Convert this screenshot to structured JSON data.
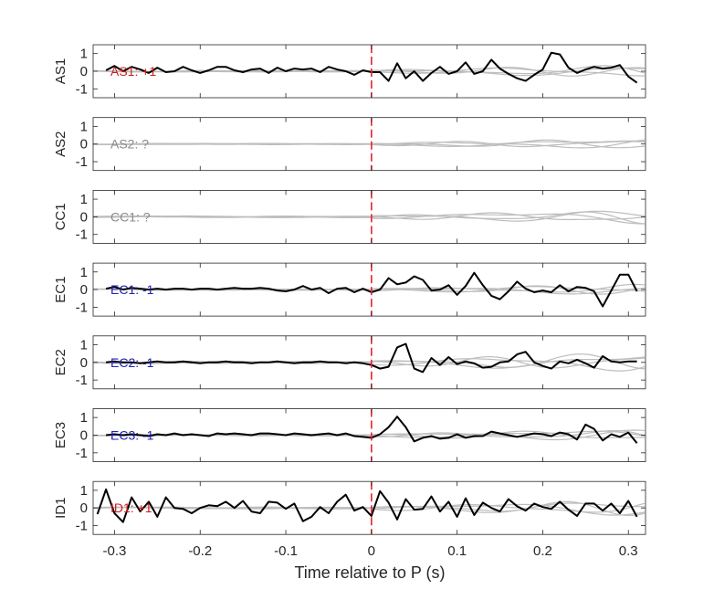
{
  "colors": {
    "trace": "#000000",
    "overlay": "#bdbdbd",
    "marker": "#e8232a",
    "positive_label": "#d01c1c",
    "negative_label": "#1f22b4",
    "unknown_label": "#8a8a8a",
    "axis": "#262626"
  },
  "chart_data": {
    "type": "line",
    "xlabel": "Time relative to P (s)",
    "xlim": [
      -0.325,
      0.32
    ],
    "x_ticks": [
      -0.3,
      -0.2,
      -0.1,
      0,
      0.1,
      0.2,
      0.3
    ],
    "x_tick_labels": [
      "-0.3",
      "-0.2",
      "-0.1",
      "0",
      "0.1",
      "0.2",
      "0.3"
    ],
    "ylim": [
      -1.5,
      1.5
    ],
    "y_ticks": [
      -1,
      0,
      1
    ],
    "y_tick_labels": [
      "-1",
      "0",
      "1"
    ],
    "marker_x": 0,
    "panels": [
      {
        "ylabel": "AS1",
        "label": "AS1: +1",
        "polarity": "positive",
        "trace_x": [
          -0.31,
          -0.3,
          -0.29,
          -0.28,
          -0.27,
          -0.26,
          -0.25,
          -0.24,
          -0.23,
          -0.22,
          -0.21,
          -0.2,
          -0.19,
          -0.18,
          -0.17,
          -0.16,
          -0.15,
          -0.14,
          -0.13,
          -0.12,
          -0.11,
          -0.1,
          -0.09,
          -0.08,
          -0.07,
          -0.06,
          -0.05,
          -0.04,
          -0.03,
          -0.02,
          -0.01,
          0,
          0.01,
          0.02,
          0.03,
          0.04,
          0.05,
          0.06,
          0.07,
          0.08,
          0.09,
          0.1,
          0.11,
          0.12,
          0.13,
          0.14,
          0.15,
          0.16,
          0.17,
          0.18,
          0.19,
          0.2,
          0.21,
          0.22,
          0.23,
          0.24,
          0.25,
          0.26,
          0.27,
          0.28,
          0.29,
          0.3,
          0.31
        ],
        "trace_y": [
          0.05,
          0.3,
          0.0,
          0.25,
          0.1,
          -0.1,
          0.2,
          -0.05,
          0.0,
          0.25,
          0.05,
          -0.1,
          0.05,
          0.25,
          0.25,
          0.05,
          -0.05,
          0.1,
          0.15,
          -0.1,
          0.2,
          0.0,
          0.15,
          0.1,
          0.15,
          -0.05,
          0.25,
          0.1,
          0.0,
          -0.2,
          0.05,
          -0.05,
          -0.05,
          -0.55,
          0.45,
          -0.4,
          0.0,
          -0.55,
          -0.1,
          0.25,
          -0.15,
          0.0,
          0.5,
          -0.15,
          0.0,
          0.65,
          0.15,
          -0.15,
          -0.4,
          -0.55,
          -0.2,
          0.1,
          1.05,
          0.95,
          0.2,
          -0.1,
          0.1,
          0.25,
          0.15,
          0.2,
          0.35,
          -0.3,
          -0.65
        ],
        "overlay_amp": 0.35
      },
      {
        "ylabel": "AS2",
        "label": "AS2: ?",
        "polarity": "unknown",
        "trace_x": [],
        "trace_y": [],
        "overlay_amp": 0.3
      },
      {
        "ylabel": "CC1",
        "label": "CC1: ?",
        "polarity": "unknown",
        "trace_x": [],
        "trace_y": [],
        "overlay_amp": 0.4
      },
      {
        "ylabel": "EC1",
        "label": "EC1: -1",
        "polarity": "negative",
        "trace_x": [
          -0.31,
          -0.3,
          -0.29,
          -0.28,
          -0.27,
          -0.26,
          -0.25,
          -0.24,
          -0.23,
          -0.22,
          -0.21,
          -0.2,
          -0.19,
          -0.18,
          -0.17,
          -0.16,
          -0.15,
          -0.14,
          -0.13,
          -0.12,
          -0.11,
          -0.1,
          -0.09,
          -0.08,
          -0.07,
          -0.06,
          -0.05,
          -0.04,
          -0.03,
          -0.02,
          -0.01,
          0,
          0.01,
          0.02,
          0.03,
          0.04,
          0.05,
          0.06,
          0.07,
          0.08,
          0.09,
          0.1,
          0.11,
          0.12,
          0.13,
          0.14,
          0.15,
          0.16,
          0.17,
          0.18,
          0.19,
          0.2,
          0.21,
          0.22,
          0.23,
          0.24,
          0.25,
          0.26,
          0.27,
          0.28,
          0.29,
          0.3,
          0.31
        ],
        "trace_y": [
          0.05,
          0.15,
          0.0,
          0.1,
          0.05,
          0.0,
          0.05,
          0.0,
          0.05,
          0.05,
          0.0,
          0.05,
          0.05,
          0.0,
          0.05,
          0.1,
          0.05,
          0.05,
          0.1,
          0.05,
          -0.05,
          -0.1,
          0.0,
          0.2,
          0.0,
          0.1,
          -0.2,
          0.05,
          0.1,
          -0.15,
          0.05,
          -0.15,
          0.0,
          0.65,
          0.3,
          0.4,
          0.75,
          0.55,
          -0.05,
          0.0,
          0.25,
          -0.3,
          0.2,
          0.95,
          0.25,
          -0.35,
          -0.55,
          -0.1,
          0.45,
          0.05,
          -0.15,
          -0.05,
          -0.15,
          0.25,
          -0.1,
          0.15,
          0.1,
          -0.1,
          -0.95,
          -0.05,
          0.85,
          0.85,
          -0.1
        ],
        "overlay_amp": 0.3
      },
      {
        "ylabel": "EC2",
        "label": "EC2: -1",
        "polarity": "negative",
        "trace_x": [
          -0.31,
          -0.3,
          -0.29,
          -0.28,
          -0.27,
          -0.26,
          -0.25,
          -0.24,
          -0.23,
          -0.22,
          -0.21,
          -0.2,
          -0.19,
          -0.18,
          -0.17,
          -0.16,
          -0.15,
          -0.14,
          -0.13,
          -0.12,
          -0.11,
          -0.1,
          -0.09,
          -0.08,
          -0.07,
          -0.06,
          -0.05,
          -0.04,
          -0.03,
          -0.02,
          -0.01,
          0,
          0.01,
          0.02,
          0.03,
          0.04,
          0.05,
          0.06,
          0.07,
          0.08,
          0.09,
          0.1,
          0.11,
          0.12,
          0.13,
          0.14,
          0.15,
          0.16,
          0.17,
          0.18,
          0.19,
          0.2,
          0.21,
          0.22,
          0.23,
          0.24,
          0.25,
          0.26,
          0.27,
          0.28,
          0.29,
          0.3,
          0.31
        ],
        "trace_y": [
          0.0,
          0.05,
          0.0,
          0.0,
          -0.05,
          0.0,
          0.05,
          0.0,
          0.0,
          0.05,
          0.0,
          -0.05,
          0.0,
          0.0,
          0.05,
          0.0,
          0.0,
          -0.05,
          0.0,
          0.0,
          0.05,
          0.0,
          -0.05,
          0.0,
          0.0,
          0.05,
          0.0,
          0.0,
          -0.05,
          0.0,
          -0.05,
          -0.15,
          -0.35,
          -0.25,
          0.85,
          1.05,
          -0.35,
          -0.55,
          0.25,
          -0.15,
          0.3,
          -0.1,
          0.05,
          -0.05,
          -0.3,
          -0.25,
          0.0,
          0.05,
          0.45,
          0.6,
          0.0,
          -0.2,
          -0.35,
          0.05,
          -0.05,
          0.15,
          -0.05,
          -0.3,
          0.35,
          0.05,
          0.0,
          0.05,
          0.05
        ],
        "overlay_amp": 0.55
      },
      {
        "ylabel": "EC3",
        "label": "EC3: -1",
        "polarity": "negative",
        "trace_x": [
          -0.31,
          -0.3,
          -0.29,
          -0.28,
          -0.27,
          -0.26,
          -0.25,
          -0.24,
          -0.23,
          -0.22,
          -0.21,
          -0.2,
          -0.19,
          -0.18,
          -0.17,
          -0.16,
          -0.15,
          -0.14,
          -0.13,
          -0.12,
          -0.11,
          -0.1,
          -0.09,
          -0.08,
          -0.07,
          -0.06,
          -0.05,
          -0.04,
          -0.03,
          -0.02,
          -0.01,
          0,
          0.01,
          0.02,
          0.03,
          0.04,
          0.05,
          0.06,
          0.07,
          0.08,
          0.09,
          0.1,
          0.11,
          0.12,
          0.13,
          0.14,
          0.15,
          0.16,
          0.17,
          0.18,
          0.19,
          0.2,
          0.21,
          0.22,
          0.23,
          0.24,
          0.25,
          0.26,
          0.27,
          0.28,
          0.29,
          0.3,
          0.31
        ],
        "trace_y": [
          0.0,
          0.05,
          0.0,
          0.05,
          0.0,
          -0.05,
          0.05,
          0.0,
          0.1,
          0.0,
          0.05,
          0.0,
          -0.05,
          0.1,
          0.05,
          0.1,
          0.05,
          0.0,
          0.1,
          0.1,
          0.05,
          0.0,
          0.1,
          0.05,
          0.0,
          0.05,
          0.1,
          0.0,
          0.1,
          -0.05,
          -0.1,
          -0.15,
          0.05,
          0.45,
          1.05,
          0.45,
          -0.35,
          -0.15,
          -0.05,
          -0.2,
          -0.15,
          0.05,
          -0.15,
          -0.05,
          -0.05,
          0.2,
          0.1,
          0.0,
          -0.1,
          0.0,
          0.1,
          0.05,
          -0.05,
          0.15,
          0.05,
          -0.25,
          0.6,
          0.35,
          -0.3,
          0.05,
          -0.1,
          0.15,
          -0.45
        ],
        "overlay_amp": 0.35
      },
      {
        "ylabel": "ID1",
        "label": "ID1: +1",
        "polarity": "positive",
        "trace_x": [
          -0.32,
          -0.31,
          -0.3,
          -0.29,
          -0.28,
          -0.27,
          -0.26,
          -0.25,
          -0.24,
          -0.23,
          -0.22,
          -0.21,
          -0.2,
          -0.19,
          -0.18,
          -0.17,
          -0.16,
          -0.15,
          -0.14,
          -0.13,
          -0.12,
          -0.11,
          -0.1,
          -0.09,
          -0.08,
          -0.07,
          -0.06,
          -0.05,
          -0.04,
          -0.03,
          -0.02,
          -0.01,
          0,
          0.01,
          0.02,
          0.03,
          0.04,
          0.05,
          0.06,
          0.07,
          0.08,
          0.09,
          0.1,
          0.11,
          0.12,
          0.13,
          0.14,
          0.15,
          0.16,
          0.17,
          0.18,
          0.19,
          0.2,
          0.21,
          0.22,
          0.23,
          0.24,
          0.25,
          0.26,
          0.27,
          0.28,
          0.29,
          0.3,
          0.31
        ],
        "trace_y": [
          -0.35,
          1.05,
          -0.3,
          -0.8,
          0.6,
          -0.2,
          0.35,
          -0.5,
          0.6,
          0.0,
          -0.05,
          -0.3,
          0.0,
          0.15,
          0.1,
          0.35,
          0.0,
          0.4,
          -0.2,
          -0.3,
          0.35,
          0.3,
          -0.05,
          0.25,
          -0.75,
          -0.5,
          0.05,
          -0.3,
          0.35,
          0.75,
          -0.15,
          0.05,
          -0.45,
          0.95,
          0.3,
          -0.65,
          0.5,
          -0.1,
          -0.05,
          0.65,
          -0.2,
          0.35,
          -0.5,
          0.55,
          -0.4,
          0.3,
          0.0,
          -0.2,
          0.5,
          0.1,
          -0.15,
          0.25,
          0.05,
          -0.05,
          0.35,
          -0.1,
          -0.45,
          0.25,
          0.25,
          -0.15,
          0.25,
          -0.3,
          0.4,
          -0.5
        ],
        "overlay_amp": 0.45
      }
    ]
  }
}
